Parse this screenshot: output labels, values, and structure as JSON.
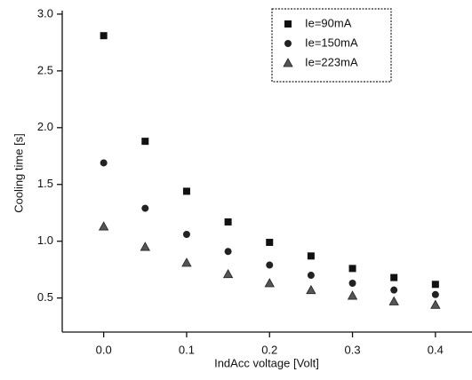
{
  "chart_data": {
    "type": "scatter",
    "x_label": "IndAcc voltage [Volt]",
    "y_label": "Cooling time [s]",
    "x": [
      0.0,
      0.05,
      0.1,
      0.15,
      0.2,
      0.25,
      0.3,
      0.35,
      0.4
    ],
    "series": [
      {
        "name": "Ie=90mA",
        "color": "#111111",
        "marker": "square",
        "values": [
          2.81,
          1.88,
          1.44,
          1.17,
          0.99,
          0.87,
          0.76,
          0.68,
          0.62
        ]
      },
      {
        "name": "Ie=150mA",
        "color": "#222222",
        "marker": "circle",
        "values": [
          1.69,
          1.29,
          1.06,
          0.91,
          0.79,
          0.7,
          0.63,
          0.57,
          0.53
        ]
      },
      {
        "name": "Ie=223mA",
        "color": "#555555",
        "marker": "triangle",
        "values": [
          1.13,
          0.95,
          0.81,
          0.71,
          0.63,
          0.57,
          0.52,
          0.47,
          0.44
        ]
      }
    ],
    "xlim": [
      -0.05,
      0.45
    ],
    "ylim": [
      0.2,
      3.0
    ],
    "xticks": [
      {
        "value": 0,
        "label": "0.0"
      },
      0.1,
      0.2,
      0.3,
      0.4
    ],
    "yticks": [
      0.5,
      {
        "value": 1,
        "label": "1.0"
      },
      1.5,
      {
        "value": 2,
        "label": "2.0"
      },
      2.5,
      {
        "value": 3,
        "label": "3.0"
      }
    ],
    "legend": "upper right"
  }
}
